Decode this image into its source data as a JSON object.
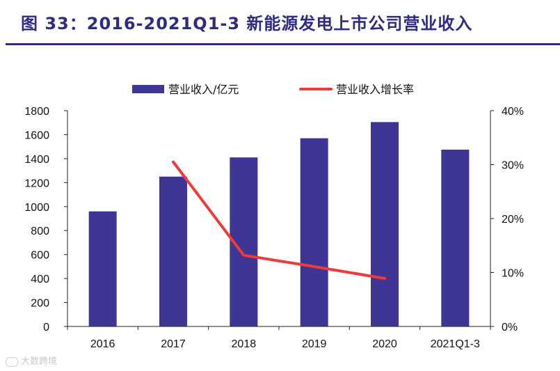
{
  "title": "图 33：2016-2021Q1-3 新能源发电上市公司营业收入",
  "watermark": "大数跨境",
  "colors": {
    "bar": "#3f3594",
    "line": "#f03a3a",
    "title": "#2e2a86",
    "axis": "#222222"
  },
  "chart_data": {
    "type": "bar",
    "categories": [
      "2016",
      "2017",
      "2018",
      "2019",
      "2020",
      "2021Q1-3"
    ],
    "series": [
      {
        "name": "营业收入/亿元",
        "type": "bar",
        "axis": "left",
        "values": [
          960,
          1250,
          1410,
          1570,
          1705,
          1475
        ]
      },
      {
        "name": "营业收入增长率",
        "type": "line",
        "axis": "right",
        "values": [
          null,
          30.5,
          13.2,
          11.1,
          8.9,
          null
        ]
      }
    ],
    "y_left": {
      "min": 0,
      "max": 1800,
      "ticks": [
        0,
        200,
        400,
        600,
        800,
        1000,
        1200,
        1400,
        1600,
        1800
      ]
    },
    "y_right": {
      "min": 0,
      "max": 40,
      "ticks": [
        "0%",
        "10%",
        "20%",
        "30%",
        "40%"
      ]
    },
    "legend": [
      "营业收入/亿元",
      "营业收入增长率"
    ],
    "legend_position": "top",
    "grid": false
  }
}
